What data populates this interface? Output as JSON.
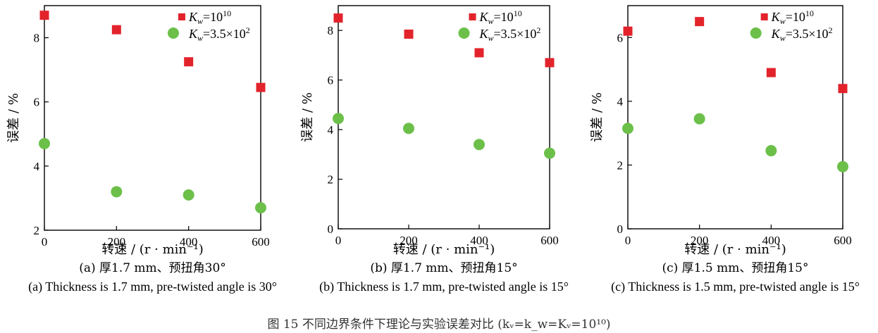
{
  "chart_data": [
    {
      "type": "scatter",
      "xlabel": "转速 / (r · min⁻¹)",
      "ylabel": "误差 / %",
      "xlim": [
        0,
        600
      ],
      "ylim": [
        2,
        9
      ],
      "x_ticks": [
        "0",
        "200",
        "400",
        "600"
      ],
      "y_ticks": [
        "2",
        "4",
        "6",
        "8"
      ],
      "legend_position": "top-right",
      "series": [
        {
          "name": "Kw=10^10",
          "marker": "square",
          "color": "#e3232b",
          "x": [
            0,
            200,
            400,
            600
          ],
          "y": [
            8.7,
            8.25,
            7.25,
            6.45
          ]
        },
        {
          "name": "Kw=3.5×10^2",
          "marker": "circle",
          "color": "#6cc04a",
          "x": [
            0,
            200,
            400,
            600
          ],
          "y": [
            4.7,
            3.2,
            3.1,
            2.7
          ]
        }
      ],
      "caption_zh": "(a) 厚1.7 mm、预扭角30°",
      "caption_en": "(a) Thickness is 1.7 mm, pre-twisted angle is 30°"
    },
    {
      "type": "scatter",
      "xlabel": "转速 / (r · min⁻¹)",
      "ylabel": "误差 / %",
      "xlim": [
        0,
        600
      ],
      "ylim": [
        0,
        9
      ],
      "x_ticks": [
        "0",
        "200",
        "400",
        "600"
      ],
      "y_ticks": [
        "0",
        "2",
        "4",
        "6",
        "8"
      ],
      "legend_position": "top-right",
      "series": [
        {
          "name": "Kw=10^10",
          "marker": "square",
          "color": "#e3232b",
          "x": [
            0,
            200,
            400,
            600
          ],
          "y": [
            8.5,
            7.85,
            7.1,
            6.7
          ]
        },
        {
          "name": "Kw=3.5×10^2",
          "marker": "circle",
          "color": "#6cc04a",
          "x": [
            0,
            200,
            400,
            600
          ],
          "y": [
            4.45,
            4.05,
            3.4,
            3.05
          ]
        }
      ],
      "caption_zh": "(b) 厚1.7 mm、预扭角15°",
      "caption_en": "(b) Thickness is 1.7 mm, pre-twisted angle is 15°"
    },
    {
      "type": "scatter",
      "xlabel": "转速 / (r · min⁻¹)",
      "ylabel": "误差 / %",
      "xlim": [
        0,
        600
      ],
      "ylim": [
        0,
        7
      ],
      "x_ticks": [
        "0",
        "200",
        "400",
        "600"
      ],
      "y_ticks": [
        "0",
        "2",
        "4",
        "6"
      ],
      "legend_position": "top-right",
      "series": [
        {
          "name": "Kw=10^10",
          "marker": "square",
          "color": "#e3232b",
          "x": [
            0,
            200,
            400,
            600
          ],
          "y": [
            6.2,
            6.5,
            4.9,
            4.4
          ]
        },
        {
          "name": "Kw=3.5×10^2",
          "marker": "circle",
          "color": "#6cc04a",
          "x": [
            0,
            200,
            400,
            600
          ],
          "y": [
            3.15,
            3.45,
            2.45,
            1.95
          ]
        }
      ],
      "caption_zh": "(c) 厚1.5 mm、预扭角15°",
      "caption_en": "(c) Thickness is 1.5 mm, pre-twisted angle is 15°"
    }
  ],
  "figure_caption": "图 15  不同边界条件下理论与实验误差对比 (kᵥ=k_w=Kᵥ=10¹⁰)"
}
